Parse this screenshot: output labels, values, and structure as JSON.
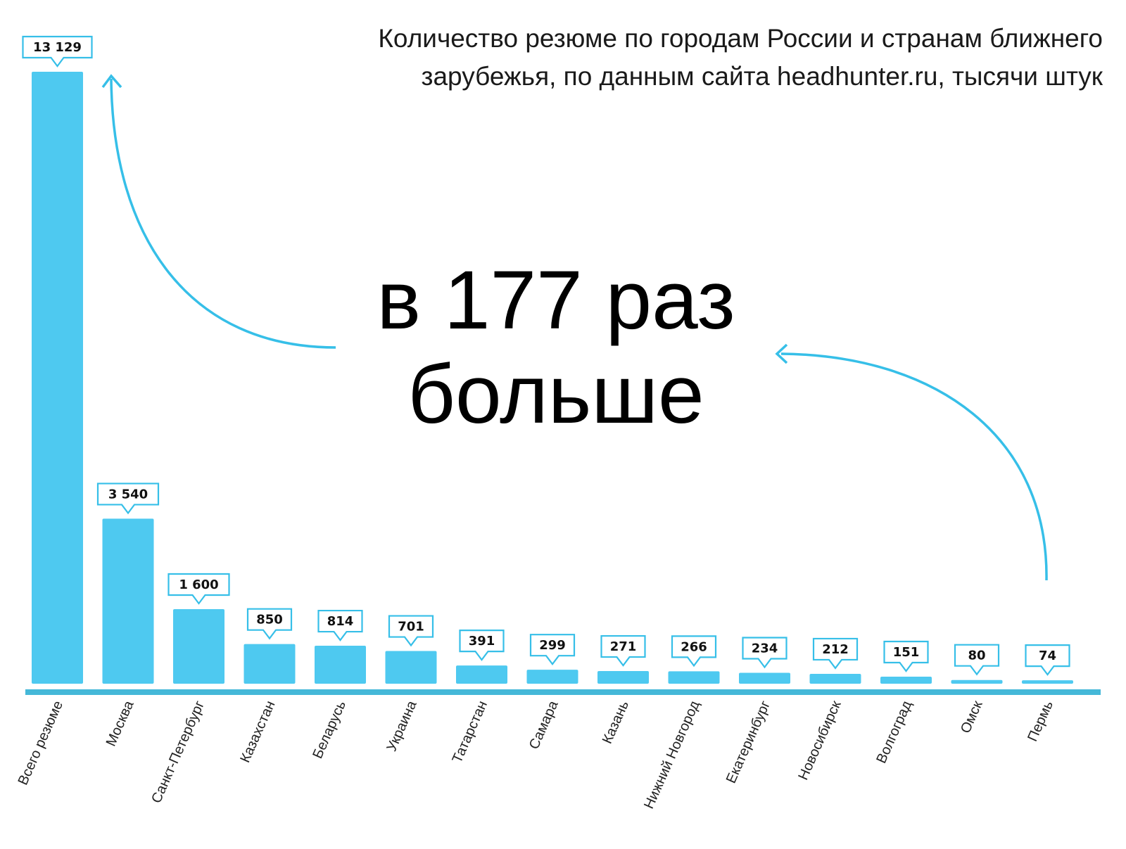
{
  "chart_data": {
    "type": "bar",
    "title": "Количество резюме по городам России и странам ближнего зарубежья, по данным сайта headhunter.ru, тысячи штук",
    "title_lines": [
      "Количество резюме по городам России и странам ближнего",
      "зарубежья, по данным сайта headhunter.ru, тысячи штук"
    ],
    "xlabel": "",
    "ylabel": "",
    "ylim": [
      0,
      13129
    ],
    "grid": false,
    "categories": [
      "Всего резюме",
      "Москва",
      "Санкт-Петербург",
      "Казахстан",
      "Беларусь",
      "Украина",
      "Татарстан",
      "Самара",
      "Казань",
      "Нижний Новгород",
      "Екатеринбург",
      "Новосибирск",
      "Волгоград",
      "Омск",
      "Пермь"
    ],
    "values": [
      13129,
      3540,
      1600,
      850,
      814,
      701,
      391,
      299,
      271,
      266,
      234,
      212,
      151,
      80,
      74
    ],
    "data_labels": [
      "13 129",
      "3 540",
      "1 600",
      "850",
      "814",
      "701",
      "391",
      "299",
      "271",
      "266",
      "234",
      "212",
      "151",
      "80",
      "74"
    ],
    "annotation_lines": [
      "в 177 раз",
      "больше"
    ]
  },
  "colors": {
    "bar": "#4ec9f0",
    "axis": "#45b8d8",
    "arrow": "#36bfe8",
    "label_border": "#36bfe8",
    "text": "#111111"
  }
}
